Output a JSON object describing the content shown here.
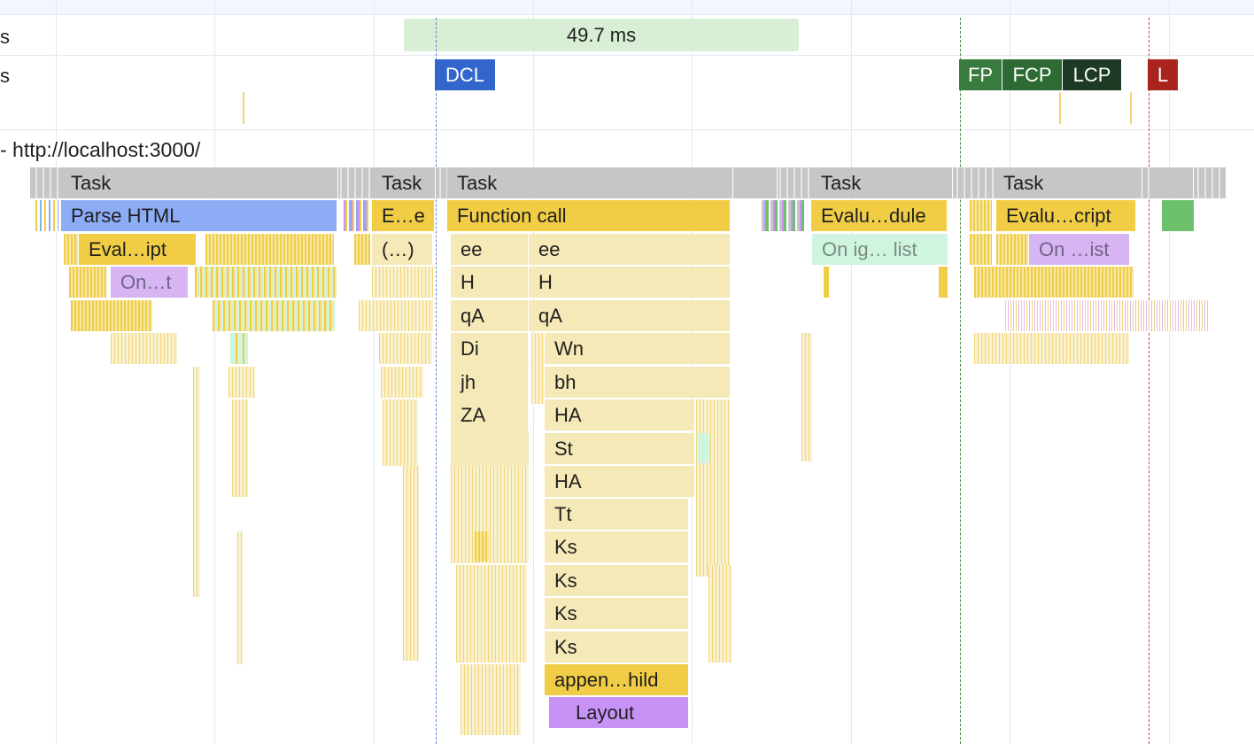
{
  "tracks": {
    "frames_label_fragment": "s",
    "timings_label_fragment": "s"
  },
  "duration_bar": {
    "label": "49.7 ms"
  },
  "markers": {
    "dcl": "DCL",
    "fp": "FP",
    "fcp": "FCP",
    "lcp": "LCP",
    "load": "L",
    "colors": {
      "dcl": "#3366cc",
      "fp": "#397a3e",
      "fcp": "#2e6b34",
      "lcp": "#1e3a24",
      "load": "#a8241d"
    }
  },
  "main_thread": {
    "url_label": "- http://localhost:3000/"
  },
  "flame": {
    "tasks": [
      "Task",
      "Task",
      "Task",
      "Task",
      "Task"
    ],
    "level1": {
      "parse_html": "Parse HTML",
      "e_e": "E…e",
      "function_call": "Function call",
      "evaluate_module": "Evalu…dule",
      "evaluate_script": "Evalu…cript"
    },
    "level2": {
      "eval_ipt": "Eval…ipt",
      "anon": "(…)",
      "ee_a": "ee",
      "ee_b": "ee",
      "on_ig_list": "On ig… list",
      "on_ist": "On …ist"
    },
    "level3": {
      "on_t": "On…t",
      "h_a": "H",
      "h_b": "H"
    },
    "column_left": [
      "qA",
      "Di",
      "jh",
      "ZA"
    ],
    "column_right": [
      "qA",
      "Wn",
      "bh",
      "HA",
      "St",
      "HA",
      "Tt",
      "Ks",
      "Ks",
      "Ks",
      "Ks"
    ],
    "append_child": "appen…hild",
    "layout": "Layout"
  }
}
